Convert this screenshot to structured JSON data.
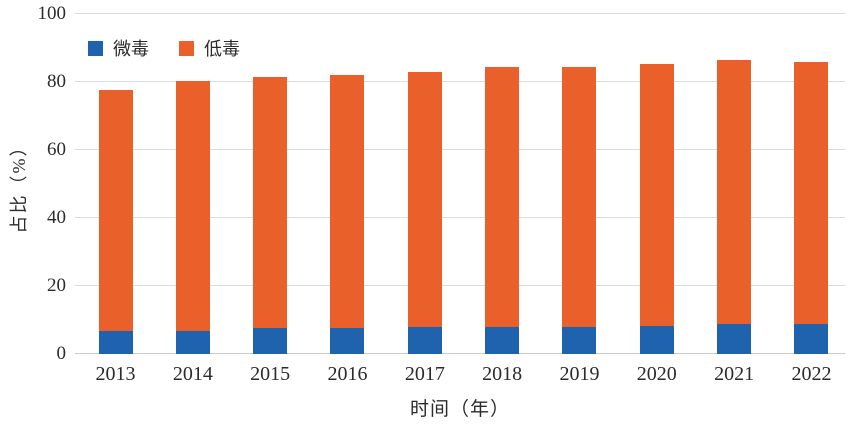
{
  "chart_data": {
    "type": "bar",
    "stacked": true,
    "title": "",
    "categories": [
      "2013",
      "2014",
      "2015",
      "2016",
      "2017",
      "2018",
      "2019",
      "2020",
      "2021",
      "2022"
    ],
    "series": [
      {
        "name": "微毒",
        "color": "#1f62ae",
        "values": [
          6.9,
          6.7,
          7.6,
          7.6,
          8.0,
          7.9,
          7.9,
          8.2,
          8.9,
          8.7
        ]
      },
      {
        "name": "低毒",
        "color": "#e9602a",
        "values": [
          70.9,
          73.5,
          73.8,
          74.6,
          75.0,
          76.6,
          76.5,
          77.0,
          77.5,
          77.3
        ]
      }
    ],
    "stack_totals": [
      77.8,
      80.2,
      81.4,
      82.2,
      83.0,
      84.5,
      84.4,
      85.2,
      86.4,
      86.0
    ],
    "xlabel": "时间（年）",
    "ylabel": "占比（%）",
    "ylim": [
      0,
      100
    ],
    "yticks": [
      0,
      20,
      40,
      60,
      80,
      100
    ],
    "grid": true,
    "grid_color": "#d9dde0",
    "legend_position": "top-left",
    "legend_labels": [
      "微毒",
      "低毒"
    ]
  }
}
